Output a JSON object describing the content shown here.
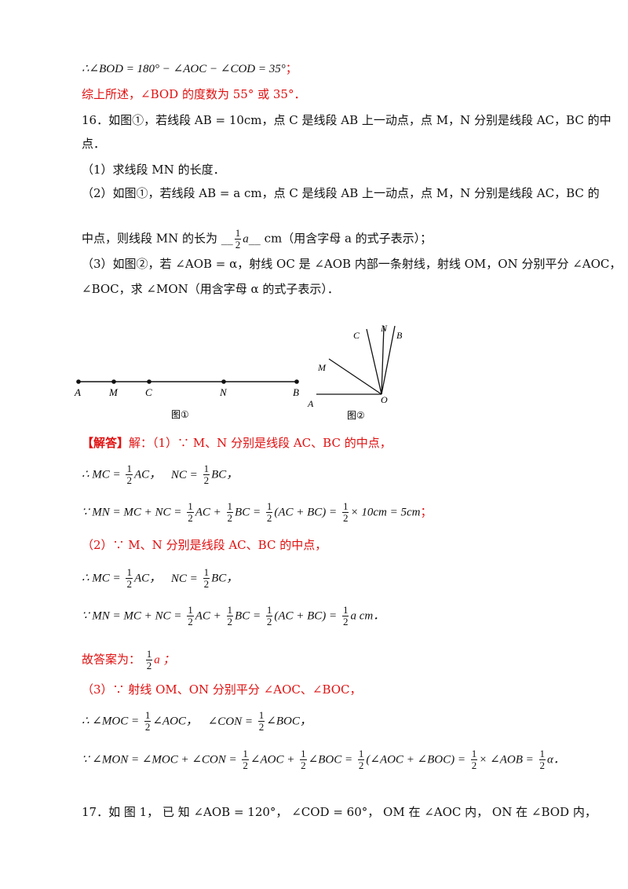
{
  "lines": {
    "l1": "∴∠BOD = 180° − ∠AOC − ∠COD = 35°",
    "l1_end": "；",
    "l2": "综上所述，∠BOD 的度数为 55° 或 35°．",
    "q16_a": "16．如图①，若线段 AB = 10cm，点 C 是线段 AB 上一动点，点 M，N 分别是线段 AC，BC 的中",
    "q16_b": "点．",
    "q16_1": "（1）求线段 MN 的长度．",
    "q16_2a": "（2）如图①，若线段 AB = a cm，点 C 是线段 AB 上一动点，点 M，N 分别是线段 AC，BC 的",
    "q16_2b_pre": "中点，则线段 MN 的长为 __",
    "q16_2b_frac_num": "1",
    "q16_2b_frac_den": "2",
    "q16_2b_var": "a",
    "q16_2b_post": "__ cm（用含字母 a 的式子表示）；",
    "q16_3a": "（3）如图②，若 ∠AOB = α，射线 OC 是 ∠AOB 内部一条射线，射线 OM，ON 分别平分 ∠AOC，",
    "q16_3b": "∠BOC，求 ∠MON（用含字母 α 的式子表示）．",
    "ans_head": "【解答】",
    "ans_1": "解：（1）∵ M、N 分别是线段 AC、BC 的中点，",
    "ans_2_pre": "∴ MC =",
    "ans_2_mid": "AC，",
    "ans_2_mid2": "NC =",
    "ans_2_end": "BC，",
    "ans_3": "∵ MN = MC + NC =",
    "ans_3_a": "AC +",
    "ans_3_b": "BC =",
    "ans_3_c": "(AC + BC) =",
    "ans_3_d": "× 10cm = 5cm",
    "ans_3_end": "；",
    "ans_4": "（2）∵ M、N 分别是线段 AC、BC 的中点，",
    "ans_5_pre": "∴ MC =",
    "ans_5_mid": "AC，",
    "ans_5_mid2": "NC =",
    "ans_5_end": "BC，",
    "ans_6": "∵ MN = MC + NC =",
    "ans_6_a": "AC +",
    "ans_6_b": "BC =",
    "ans_6_c": "(AC + BC) =",
    "ans_6_d": "a cm．",
    "ans_7_pre": "故答案为：",
    "ans_7_end": "a ；",
    "ans_8": "（3）∵ 射线 OM、ON 分别平分 ∠AOC、∠BOC，",
    "ans_9_pre": "∴ ∠MOC =",
    "ans_9_mid": "∠AOC，",
    "ans_9_mid2": "∠CON =",
    "ans_9_end": "∠BOC，",
    "ans_10": "∵ ∠MON = ∠MOC + ∠CON =",
    "ans_10_a": "∠AOC +",
    "ans_10_b": "∠BOC =",
    "ans_10_c": "(∠AOC + ∠BOC) =",
    "ans_10_d": "× ∠AOB =",
    "ans_10_e": "α．",
    "q17": "17．如 图 1， 已 知 ∠AOB = 120°， ∠COD = 60°， OM 在 ∠AOC 内， ON 在 ∠BOD 内，",
    "half_num": "1",
    "half_den": "2"
  },
  "figure1": {
    "labels": [
      "A",
      "M",
      "C",
      "N",
      "B"
    ],
    "caption": "图①"
  },
  "figure2": {
    "labels": [
      "C",
      "N",
      "B",
      "M",
      "A",
      "O"
    ],
    "caption": "图②"
  }
}
